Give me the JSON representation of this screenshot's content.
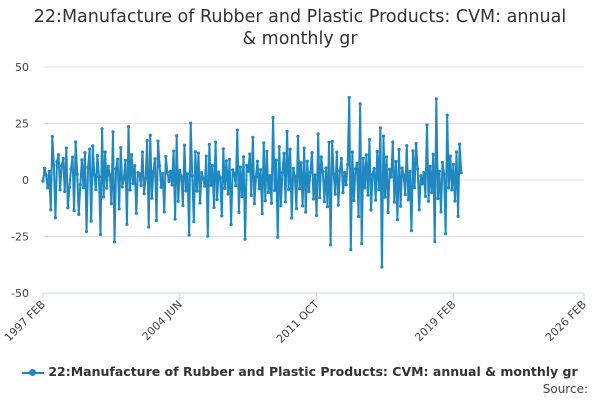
{
  "title_lines": [
    "22:Manufacture of Rubber and Plastic Products: CVM: annual",
    "& monthly gr"
  ],
  "source_label": "Source:",
  "colors": {
    "series": "#1f88c0",
    "grid": "#dddddd",
    "axis": "#ccd6eb"
  },
  "chart_data": {
    "type": "line",
    "title": "22:Manufacture of Rubber and Plastic Products: CVM: annual & monthly gr",
    "xlabel": "",
    "ylabel": "",
    "ylim": [
      -50,
      50
    ],
    "yticks": [
      50,
      25,
      0,
      -25,
      -50
    ],
    "xlim": [
      "1997-02",
      "2026-02"
    ],
    "xticks": [
      {
        "date": "1997-02",
        "label": "1997 FEB"
      },
      {
        "date": "2004-06",
        "label": "2004 JUN"
      },
      {
        "date": "2011-10",
        "label": "2011 OCT"
      },
      {
        "date": "2019-02",
        "label": "2019 FEB"
      },
      {
        "date": "2026-02",
        "label": "2026 FEB"
      }
    ],
    "grid": true,
    "legend": "bottom-center",
    "series": [
      {
        "name": "22:Manufacture of Rubber and Plastic Products: CVM: annual & monthly gr",
        "start": "1997-02",
        "frequency": "monthly",
        "values": [
          -0.5,
          5.2,
          2.1,
          -3.5,
          3.8,
          -13.2,
          19.2,
          6.5,
          -16.7,
          8.1,
          11.2,
          -4.3,
          6.2,
          9.5,
          -5.1,
          14.1,
          -12.3,
          -3.2,
          4.8,
          10.1,
          -13.5,
          16.8,
          2.5,
          -15.2,
          -2.1,
          8.9,
          -3.4,
          12.1,
          -22.8,
          5.6,
          13.7,
          -18.2,
          15.1,
          2.3,
          -4.2,
          10.8,
          1.4,
          -24.1,
          22.7,
          -7.5,
          12.4,
          -3.6,
          6.1,
          2.2,
          -10.5,
          21.3,
          -27.4,
          4.9,
          9.2,
          -12.8,
          14.3,
          -3.1,
          0.5,
          8.7,
          -19.6,
          23.6,
          -4.4,
          11.2,
          -1.6,
          6.3,
          -14.7,
          3.3,
          2.8,
          -2.4,
          12.4,
          -6.1,
          0.7,
          17.5,
          -20.8,
          19.8,
          -8.1,
          3.6,
          9.4,
          -17.9,
          17.2,
          6.3,
          -3.2,
          2.9,
          -14.1,
          10.4,
          3.5,
          -0.6,
          3.8,
          -2.2,
          12.8,
          -17.3,
          19.6,
          -9.4,
          4.2,
          1.5,
          -11.3,
          15.4,
          -4.8,
          2.7,
          -24.3,
          25.2,
          1.9,
          -18.4,
          12.5,
          -4.9,
          11.9,
          -10.2,
          3.3,
          0.8,
          -2.7,
          10.6,
          -24.9,
          15.8,
          -2.3,
          6.4,
          -12.2,
          16.7,
          -8.6,
          3.5,
          1.1,
          -15.9,
          13.8,
          -3.7,
          8.4,
          -6.2,
          9.1,
          -19.7,
          4.5,
          2.9,
          -2.5,
          22.1,
          -14.3,
          5.7,
          -7.3,
          10.3,
          -26.2,
          6.5,
          3.9,
          11.5,
          -6.8,
          18.9,
          -10.4,
          1.4,
          8.3,
          -3.9,
          4.6,
          -14.8,
          16.4,
          -9.2,
          12.7,
          -5.5,
          1.9,
          -10.3,
          27.6,
          -4.6,
          8.8,
          -25.3,
          14.7,
          -11.4,
          3.2,
          11.8,
          -9.7,
          21.5,
          -4.1,
          13.6,
          -16.8,
          5.2,
          1.6,
          -12.7,
          19.3,
          -3.8,
          7.6,
          -11.5,
          14.1,
          -14.2,
          8.3,
          -5.1,
          3.4,
          12.1,
          -8.4,
          2.2,
          -15.7,
          20.4,
          -7.8,
          10.2,
          3.7,
          -9.6,
          5.4,
          -11.8,
          16.7,
          -28.7,
          17.1,
          2.6,
          -6.3,
          12.3,
          -11.1,
          4.1,
          9.5,
          -5.6,
          3.3,
          -2.1,
          6.8,
          36.5,
          -30.8,
          12.4,
          -9.1,
          4.9,
          7.3,
          -16.2,
          33.7,
          -28.1,
          9.6,
          -3.5,
          11.1,
          -6.7,
          17.9,
          -13.3,
          2.4,
          5.1,
          -8.9,
          12.6,
          -4.2,
          23.1,
          -38.5,
          19.4,
          -7.6,
          10.2,
          -14.4,
          4.7,
          1.3,
          16.8,
          -9.8,
          8.2,
          -17.6,
          13.5,
          -11.6,
          5.3,
          2.1,
          -6.4,
          15.2,
          -8.8,
          3.7,
          -22.4,
          12.9,
          -3.4,
          16.1,
          4.8,
          -13.2,
          1.9,
          -1.7,
          3.3,
          -7.2,
          24.3,
          -9.4,
          6.1,
          -5.6,
          11.4,
          -27.3,
          35.9,
          -8.2,
          3.9,
          -14.1,
          7.7,
          2.6,
          -23.8,
          28.7,
          -3.5,
          10.6,
          -4.4,
          6.9,
          -9.3,
          12.4,
          -16.1,
          15.9,
          3.2
        ]
      }
    ]
  }
}
